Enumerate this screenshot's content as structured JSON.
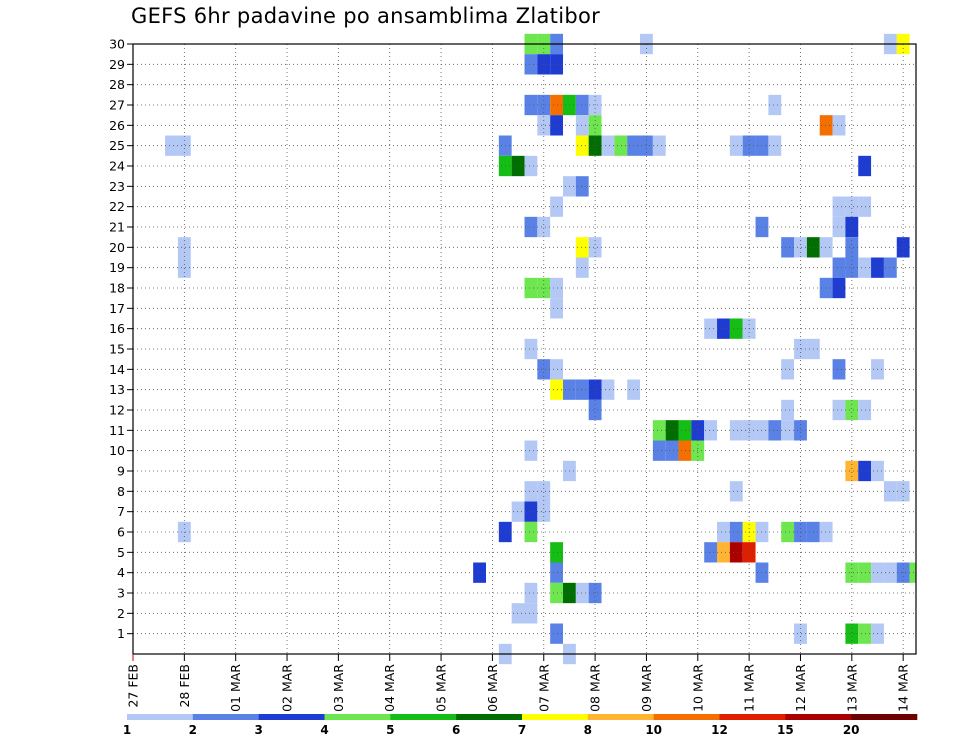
{
  "chart_data": {
    "type": "heatmap",
    "title": "GEFS 6hr padavine po ansamblima Zlatibor",
    "x_tick_labels": [
      "27 FEB",
      "28 FEB",
      "01 MAR",
      "02 MAR",
      "03 MAR",
      "04 MAR",
      "05 MAR",
      "06 MAR",
      "07 MAR",
      "08 MAR",
      "09 MAR",
      "10 MAR",
      "11 MAR",
      "12 MAR",
      "13 MAR",
      "14 MAR"
    ],
    "x_unit": "6hr steps since 27 FEB",
    "xlim": [
      0,
      61
    ],
    "y_tick_labels": [
      "1",
      "2",
      "3",
      "4",
      "5",
      "6",
      "7",
      "8",
      "9",
      "10",
      "11",
      "12",
      "13",
      "14",
      "15",
      "16",
      "17",
      "18",
      "19",
      "20",
      "21",
      "22",
      "23",
      "24",
      "25",
      "26",
      "27",
      "28",
      "29",
      "30"
    ],
    "ylim": [
      0,
      30
    ],
    "grid": true,
    "levels": [
      "1",
      "2",
      "3",
      "4",
      "5",
      "6",
      "7",
      "8",
      "10",
      "12",
      "15",
      "20"
    ],
    "colors": {
      "l1": "#b4c8f5",
      "l2": "#5a82e6",
      "l3": "#1e3cd2",
      "l5": "#6ee650",
      "l6": "#14be14",
      "l7": "#006e00",
      "l8": "#ffff00",
      "l10": "#ffb432",
      "l12": "#f56e00",
      "l15": "#e11e00",
      "l20": "#aa0000",
      "l20p": "#6e0000"
    },
    "cells": [
      {
        "m": 30,
        "t": 31,
        "v": 5
      },
      {
        "m": 30,
        "t": 32,
        "v": 5
      },
      {
        "m": 30,
        "t": 33,
        "v": 2
      },
      {
        "m": 30,
        "t": 40,
        "v": 1
      },
      {
        "m": 30,
        "t": 59,
        "v": 1
      },
      {
        "m": 30,
        "t": 60,
        "v": 8
      },
      {
        "m": 29,
        "t": 31,
        "v": 2
      },
      {
        "m": 29,
        "t": 32,
        "v": 3
      },
      {
        "m": 29,
        "t": 33,
        "v": 3
      },
      {
        "m": 27,
        "t": 31,
        "v": 2
      },
      {
        "m": 27,
        "t": 32,
        "v": 2
      },
      {
        "m": 27,
        "t": 33,
        "v": 12
      },
      {
        "m": 27,
        "t": 34,
        "v": 6
      },
      {
        "m": 27,
        "t": 35,
        "v": 2
      },
      {
        "m": 27,
        "t": 36,
        "v": 1
      },
      {
        "m": 27,
        "t": 50,
        "v": 1
      },
      {
        "m": 26,
        "t": 32,
        "v": 1
      },
      {
        "m": 26,
        "t": 33,
        "v": 3
      },
      {
        "m": 26,
        "t": 35,
        "v": 1
      },
      {
        "m": 26,
        "t": 36,
        "v": 5
      },
      {
        "m": 26,
        "t": 54,
        "v": 12
      },
      {
        "m": 26,
        "t": 55,
        "v": 1
      },
      {
        "m": 25,
        "t": 3,
        "v": 1
      },
      {
        "m": 25,
        "t": 4,
        "v": 1
      },
      {
        "m": 25,
        "t": 29,
        "v": 2
      },
      {
        "m": 25,
        "t": 35,
        "v": 8
      },
      {
        "m": 25,
        "t": 36,
        "v": 7
      },
      {
        "m": 25,
        "t": 37,
        "v": 1
      },
      {
        "m": 25,
        "t": 38,
        "v": 5
      },
      {
        "m": 25,
        "t": 39,
        "v": 2
      },
      {
        "m": 25,
        "t": 40,
        "v": 2
      },
      {
        "m": 25,
        "t": 41,
        "v": 1
      },
      {
        "m": 25,
        "t": 47,
        "v": 1
      },
      {
        "m": 25,
        "t": 48,
        "v": 2
      },
      {
        "m": 25,
        "t": 49,
        "v": 2
      },
      {
        "m": 25,
        "t": 50,
        "v": 1
      },
      {
        "m": 24,
        "t": 29,
        "v": 6
      },
      {
        "m": 24,
        "t": 30,
        "v": 7
      },
      {
        "m": 24,
        "t": 31,
        "v": 1
      },
      {
        "m": 24,
        "t": 57,
        "v": 3
      },
      {
        "m": 23,
        "t": 34,
        "v": 1
      },
      {
        "m": 23,
        "t": 35,
        "v": 2
      },
      {
        "m": 22,
        "t": 33,
        "v": 1
      },
      {
        "m": 22,
        "t": 55,
        "v": 1
      },
      {
        "m": 22,
        "t": 56,
        "v": 1
      },
      {
        "m": 22,
        "t": 57,
        "v": 1
      },
      {
        "m": 21,
        "t": 31,
        "v": 2
      },
      {
        "m": 21,
        "t": 32,
        "v": 1
      },
      {
        "m": 21,
        "t": 49,
        "v": 2
      },
      {
        "m": 21,
        "t": 55,
        "v": 1
      },
      {
        "m": 21,
        "t": 56,
        "v": 3
      },
      {
        "m": 20,
        "t": 4,
        "v": 1
      },
      {
        "m": 20,
        "t": 35,
        "v": 8
      },
      {
        "m": 20,
        "t": 36,
        "v": 1
      },
      {
        "m": 20,
        "t": 51,
        "v": 2
      },
      {
        "m": 20,
        "t": 52,
        "v": 1
      },
      {
        "m": 20,
        "t": 53,
        "v": 7
      },
      {
        "m": 20,
        "t": 54,
        "v": 1
      },
      {
        "m": 20,
        "t": 56,
        "v": 2
      },
      {
        "m": 20,
        "t": 60,
        "v": 3
      },
      {
        "m": 19,
        "t": 4,
        "v": 1
      },
      {
        "m": 19,
        "t": 35,
        "v": 1
      },
      {
        "m": 19,
        "t": 55,
        "v": 2
      },
      {
        "m": 19,
        "t": 56,
        "v": 2
      },
      {
        "m": 19,
        "t": 57,
        "v": 1
      },
      {
        "m": 19,
        "t": 58,
        "v": 3
      },
      {
        "m": 19,
        "t": 59,
        "v": 2
      },
      {
        "m": 18,
        "t": 31,
        "v": 5
      },
      {
        "m": 18,
        "t": 32,
        "v": 5
      },
      {
        "m": 18,
        "t": 33,
        "v": 1
      },
      {
        "m": 18,
        "t": 54,
        "v": 2
      },
      {
        "m": 18,
        "t": 55,
        "v": 3
      },
      {
        "m": 17,
        "t": 33,
        "v": 1
      },
      {
        "m": 16,
        "t": 45,
        "v": 1
      },
      {
        "m": 16,
        "t": 46,
        "v": 3
      },
      {
        "m": 16,
        "t": 47,
        "v": 6
      },
      {
        "m": 16,
        "t": 48,
        "v": 1
      },
      {
        "m": 15,
        "t": 31,
        "v": 1
      },
      {
        "m": 15,
        "t": 52,
        "v": 1
      },
      {
        "m": 15,
        "t": 53,
        "v": 1
      },
      {
        "m": 14,
        "t": 32,
        "v": 2
      },
      {
        "m": 14,
        "t": 33,
        "v": 1
      },
      {
        "m": 14,
        "t": 51,
        "v": 1
      },
      {
        "m": 14,
        "t": 55,
        "v": 2
      },
      {
        "m": 14,
        "t": 58,
        "v": 1
      },
      {
        "m": 13,
        "t": 33,
        "v": 8
      },
      {
        "m": 13,
        "t": 34,
        "v": 2
      },
      {
        "m": 13,
        "t": 35,
        "v": 2
      },
      {
        "m": 13,
        "t": 36,
        "v": 3
      },
      {
        "m": 13,
        "t": 37,
        "v": 1
      },
      {
        "m": 13,
        "t": 39,
        "v": 1
      },
      {
        "m": 12,
        "t": 36,
        "v": 2
      },
      {
        "m": 12,
        "t": 51,
        "v": 1
      },
      {
        "m": 12,
        "t": 55,
        "v": 1
      },
      {
        "m": 12,
        "t": 56,
        "v": 5
      },
      {
        "m": 12,
        "t": 57,
        "v": 1
      },
      {
        "m": 11,
        "t": 41,
        "v": 5
      },
      {
        "m": 11,
        "t": 42,
        "v": 7
      },
      {
        "m": 11,
        "t": 43,
        "v": 6
      },
      {
        "m": 11,
        "t": 44,
        "v": 3
      },
      {
        "m": 11,
        "t": 45,
        "v": 1
      },
      {
        "m": 11,
        "t": 47,
        "v": 1
      },
      {
        "m": 11,
        "t": 48,
        "v": 1
      },
      {
        "m": 11,
        "t": 49,
        "v": 1
      },
      {
        "m": 11,
        "t": 50,
        "v": 2
      },
      {
        "m": 11,
        "t": 51,
        "v": 1
      },
      {
        "m": 11,
        "t": 52,
        "v": 2
      },
      {
        "m": 10,
        "t": 31,
        "v": 1
      },
      {
        "m": 10,
        "t": 41,
        "v": 2
      },
      {
        "m": 10,
        "t": 42,
        "v": 2
      },
      {
        "m": 10,
        "t": 43,
        "v": 12
      },
      {
        "m": 10,
        "t": 44,
        "v": 5
      },
      {
        "m": 9,
        "t": 34,
        "v": 1
      },
      {
        "m": 9,
        "t": 56,
        "v": 10
      },
      {
        "m": 9,
        "t": 57,
        "v": 3
      },
      {
        "m": 9,
        "t": 58,
        "v": 1
      },
      {
        "m": 8,
        "t": 31,
        "v": 1
      },
      {
        "m": 8,
        "t": 32,
        "v": 1
      },
      {
        "m": 8,
        "t": 47,
        "v": 1
      },
      {
        "m": 8,
        "t": 59,
        "v": 1
      },
      {
        "m": 8,
        "t": 60,
        "v": 1
      },
      {
        "m": 7,
        "t": 30,
        "v": 1
      },
      {
        "m": 7,
        "t": 31,
        "v": 3
      },
      {
        "m": 7,
        "t": 32,
        "v": 1
      },
      {
        "m": 6,
        "t": 4,
        "v": 1
      },
      {
        "m": 6,
        "t": 29,
        "v": 3
      },
      {
        "m": 6,
        "t": 31,
        "v": 5
      },
      {
        "m": 6,
        "t": 46,
        "v": 1
      },
      {
        "m": 6,
        "t": 47,
        "v": 2
      },
      {
        "m": 6,
        "t": 48,
        "v": 8
      },
      {
        "m": 6,
        "t": 49,
        "v": 1
      },
      {
        "m": 6,
        "t": 51,
        "v": 5
      },
      {
        "m": 6,
        "t": 52,
        "v": 2
      },
      {
        "m": 6,
        "t": 53,
        "v": 2
      },
      {
        "m": 6,
        "t": 54,
        "v": 1
      },
      {
        "m": 5,
        "t": 33,
        "v": 6
      },
      {
        "m": 5,
        "t": 45,
        "v": 2
      },
      {
        "m": 5,
        "t": 46,
        "v": 10
      },
      {
        "m": 5,
        "t": 47,
        "v": 20
      },
      {
        "m": 5,
        "t": 48,
        "v": 15
      },
      {
        "m": 4,
        "t": 27,
        "v": 3
      },
      {
        "m": 4,
        "t": 33,
        "v": 2
      },
      {
        "m": 4,
        "t": 49,
        "v": 2
      },
      {
        "m": 4,
        "t": 56,
        "v": 5
      },
      {
        "m": 4,
        "t": 57,
        "v": 5
      },
      {
        "m": 4,
        "t": 58,
        "v": 1
      },
      {
        "m": 4,
        "t": 59,
        "v": 1
      },
      {
        "m": 4,
        "t": 60,
        "v": 2
      },
      {
        "m": 4,
        "t": 61,
        "v": 5
      },
      {
        "m": 3,
        "t": 31,
        "v": 1
      },
      {
        "m": 3,
        "t": 33,
        "v": 5
      },
      {
        "m": 3,
        "t": 34,
        "v": 7
      },
      {
        "m": 3,
        "t": 35,
        "v": 1
      },
      {
        "m": 3,
        "t": 36,
        "v": 2
      },
      {
        "m": 2,
        "t": 30,
        "v": 1
      },
      {
        "m": 2,
        "t": 31,
        "v": 1
      },
      {
        "m": 1,
        "t": 33,
        "v": 2
      },
      {
        "m": 1,
        "t": 52,
        "v": 1
      },
      {
        "m": 1,
        "t": 56,
        "v": 6
      },
      {
        "m": 1,
        "t": 57,
        "v": 5
      },
      {
        "m": 1,
        "t": 58,
        "v": 1
      },
      {
        "m": 0,
        "t": 29,
        "v": 1
      },
      {
        "m": 0,
        "t": 34,
        "v": 1
      }
    ]
  }
}
